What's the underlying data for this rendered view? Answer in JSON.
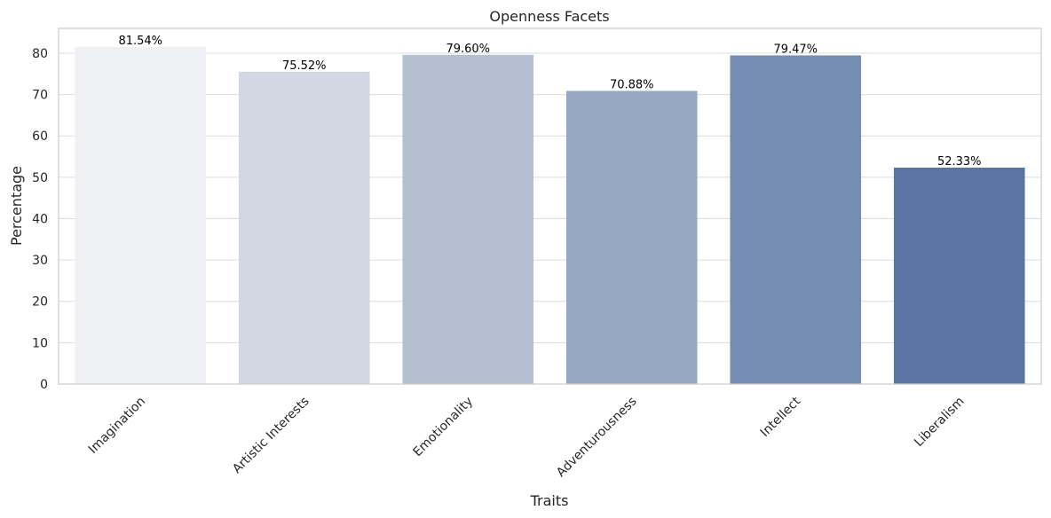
{
  "chart_data": {
    "type": "bar",
    "title": "Openness Facets",
    "xlabel": "Traits",
    "ylabel": "Percentage",
    "categories": [
      "Imagination",
      "Artistic Interests",
      "Emotionality",
      "Adventurousness",
      "Intellect",
      "Liberalism"
    ],
    "values": [
      81.54,
      75.52,
      79.6,
      70.88,
      79.47,
      52.33
    ],
    "data_labels": [
      "81.54%",
      "75.52%",
      "79.60%",
      "70.88%",
      "79.47%",
      "52.33%"
    ],
    "ylim": [
      0,
      86
    ],
    "yticks": [
      0,
      10,
      20,
      30,
      40,
      50,
      60,
      70,
      80
    ],
    "grid": "horizontal",
    "colors": [
      "#eff0f3",
      "#d2d8e3",
      "#b4bfd1",
      "#96a7c2",
      "#758db3",
      "#5a75a4"
    ]
  }
}
